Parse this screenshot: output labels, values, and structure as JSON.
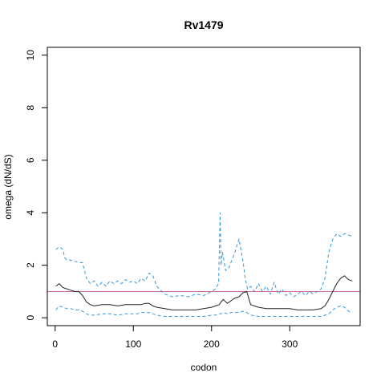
{
  "chart_data": {
    "type": "line",
    "title": "Rv1479",
    "xlabel": "codon",
    "ylabel": "omega (dN/dS)",
    "xlim": [
      -10,
      390
    ],
    "ylim": [
      -0.3,
      10.3
    ],
    "xticks": [
      0,
      100,
      200,
      300
    ],
    "yticks": [
      0,
      2,
      4,
      6,
      8,
      10
    ],
    "reference_line": {
      "y": 1,
      "color": "#cc6699"
    },
    "grid": false,
    "legend": "none",
    "series": [
      {
        "style": "solid",
        "color": "#222222",
        "x": [
          1,
          5,
          10,
          15,
          20,
          25,
          30,
          35,
          40,
          45,
          50,
          60,
          70,
          80,
          90,
          100,
          105,
          110,
          115,
          120,
          125,
          130,
          140,
          150,
          160,
          170,
          180,
          190,
          200,
          205,
          210,
          212,
          215,
          220,
          225,
          230,
          235,
          240,
          245,
          250,
          260,
          270,
          280,
          290,
          300,
          310,
          320,
          330,
          340,
          345,
          350,
          355,
          360,
          365,
          370,
          375,
          380
        ],
        "y": [
          1.2,
          1.3,
          1.15,
          1.1,
          1.05,
          1.0,
          1.0,
          0.85,
          0.6,
          0.5,
          0.45,
          0.5,
          0.5,
          0.45,
          0.5,
          0.5,
          0.5,
          0.5,
          0.55,
          0.55,
          0.45,
          0.4,
          0.35,
          0.3,
          0.3,
          0.3,
          0.3,
          0.35,
          0.4,
          0.45,
          0.5,
          0.6,
          0.7,
          0.55,
          0.65,
          0.75,
          0.8,
          0.95,
          1.0,
          0.5,
          0.4,
          0.35,
          0.35,
          0.35,
          0.35,
          0.3,
          0.3,
          0.3,
          0.35,
          0.45,
          0.7,
          1.0,
          1.3,
          1.5,
          1.6,
          1.45,
          1.4
        ]
      },
      {
        "style": "dashed",
        "color": "#3399dd",
        "x": [
          1,
          5,
          10,
          12,
          15,
          20,
          25,
          30,
          35,
          40,
          45,
          50,
          55,
          60,
          65,
          70,
          75,
          80,
          85,
          90,
          95,
          100,
          105,
          110,
          115,
          120,
          125,
          130,
          140,
          150,
          160,
          170,
          180,
          190,
          200,
          205,
          209,
          211,
          212,
          214,
          218,
          222,
          226,
          230,
          235,
          240,
          243,
          246,
          250,
          255,
          260,
          265,
          270,
          275,
          280,
          285,
          290,
          295,
          300,
          305,
          310,
          315,
          320,
          325,
          330,
          335,
          340,
          345,
          350,
          355,
          360,
          365,
          370,
          375,
          380
        ],
        "y": [
          2.6,
          2.7,
          2.6,
          2.3,
          2.2,
          2.2,
          2.15,
          2.1,
          2.1,
          1.5,
          1.3,
          1.4,
          1.2,
          1.35,
          1.2,
          1.4,
          1.3,
          1.4,
          1.3,
          1.45,
          1.35,
          1.4,
          1.3,
          1.5,
          1.4,
          1.7,
          1.6,
          1.2,
          0.9,
          0.8,
          0.85,
          0.8,
          0.9,
          0.85,
          1.0,
          1.1,
          1.3,
          4.0,
          2.0,
          2.5,
          1.8,
          1.9,
          2.2,
          2.5,
          3.0,
          2.2,
          1.5,
          1.1,
          1.2,
          1.0,
          1.3,
          1.0,
          1.2,
          0.9,
          1.35,
          0.9,
          1.1,
          0.85,
          0.95,
          0.8,
          0.9,
          1.0,
          0.85,
          1.0,
          0.9,
          1.0,
          1.1,
          1.5,
          2.5,
          3.0,
          3.2,
          3.1,
          3.2,
          3.15,
          3.1
        ]
      },
      {
        "style": "dashed",
        "color": "#3399dd",
        "x": [
          1,
          5,
          10,
          15,
          20,
          25,
          30,
          35,
          40,
          45,
          50,
          60,
          70,
          80,
          90,
          100,
          105,
          110,
          115,
          120,
          125,
          130,
          140,
          150,
          160,
          170,
          180,
          190,
          200,
          205,
          210,
          212,
          215,
          220,
          225,
          230,
          235,
          240,
          245,
          250,
          260,
          270,
          280,
          290,
          300,
          310,
          320,
          330,
          340,
          345,
          350,
          355,
          360,
          365,
          370,
          375,
          380
        ],
        "y": [
          0.3,
          0.45,
          0.4,
          0.35,
          0.35,
          0.3,
          0.3,
          0.25,
          0.15,
          0.1,
          0.1,
          0.15,
          0.15,
          0.1,
          0.15,
          0.15,
          0.15,
          0.2,
          0.2,
          0.2,
          0.15,
          0.1,
          0.05,
          0.05,
          0.05,
          0.05,
          0.05,
          0.05,
          0.1,
          0.1,
          0.15,
          0.15,
          0.2,
          0.15,
          0.2,
          0.2,
          0.2,
          0.25,
          0.2,
          0.1,
          0.05,
          0.05,
          0.05,
          0.05,
          0.05,
          0.05,
          0.05,
          0.05,
          0.05,
          0.1,
          0.15,
          0.3,
          0.4,
          0.45,
          0.4,
          0.25,
          0.2
        ]
      }
    ]
  }
}
